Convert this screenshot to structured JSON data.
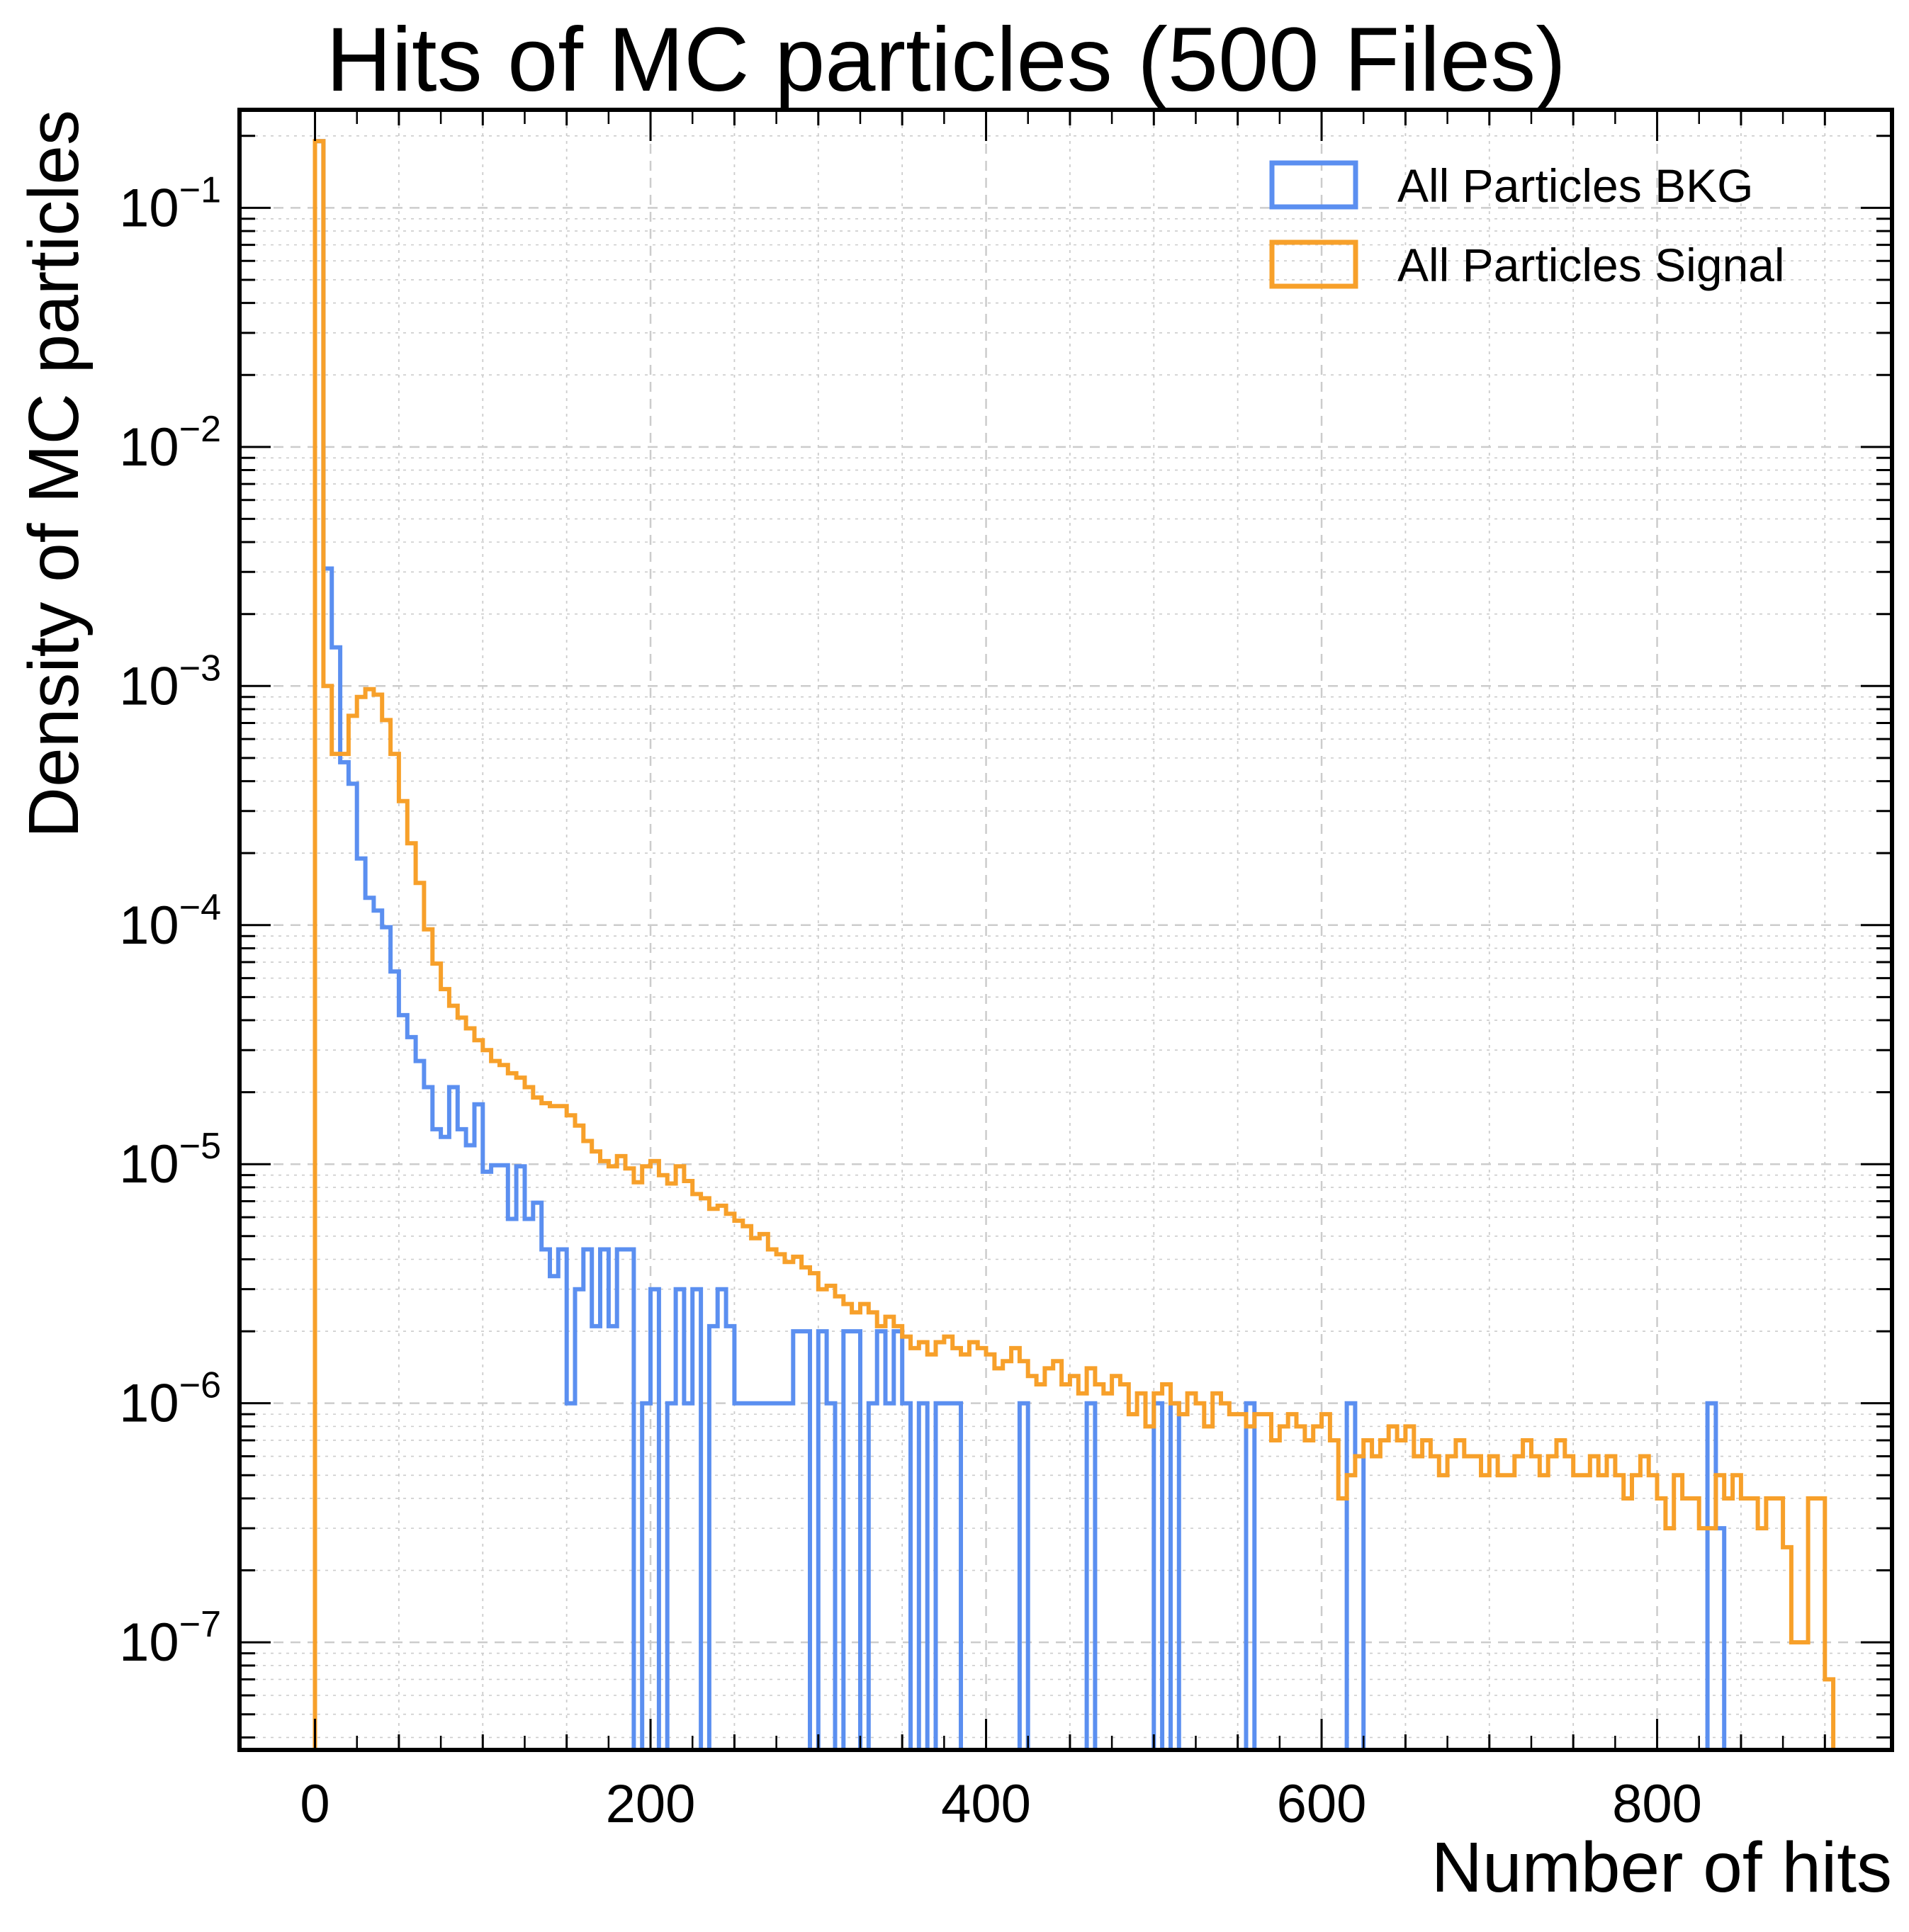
{
  "chart_data": {
    "type": "histogram",
    "title": "Hits of MC particles (500 Files)",
    "xlabel": "Number of hits",
    "ylabel": "Density of MC particles",
    "xlim": [
      -45,
      940
    ],
    "ylim_log10": [
      -7.45,
      -0.59
    ],
    "x_ticks": [
      0,
      200,
      400,
      600,
      800
    ],
    "y_tick_exponents": [
      -1,
      -2,
      -3,
      -4,
      -5,
      -6,
      -7
    ],
    "y_tick_base": "10",
    "grid": true,
    "legend_position": "top-right",
    "bin_width": 5,
    "colors": {
      "bkg": "#5b8ff0",
      "signal": "#f7a02a"
    },
    "series": [
      {
        "name": "All Particles BKG",
        "key": "bkg",
        "start": 0,
        "values": [
          0.19,
          0.0031,
          0.00145,
          0.00048,
          0.00039,
          0.00019,
          0.00013,
          0.000115,
          9.8e-05,
          6.4e-05,
          4.2e-05,
          3.4e-05,
          2.7e-05,
          2.1e-05,
          1.4e-05,
          1.3e-05,
          2.1e-05,
          1.4e-05,
          1.2e-05,
          1.78e-05,
          9.3e-06,
          9.9e-06,
          9.9e-06,
          5.9e-06,
          9.8e-06,
          5.9e-06,
          6.9e-06,
          4.4e-06,
          3.4e-06,
          4.4e-06,
          1e-06,
          3e-06,
          4.4e-06,
          2.1e-06,
          4.4e-06,
          2.1e-06,
          4.4e-06,
          4.4e-06,
          0,
          1e-06,
          3e-06,
          0,
          1e-06,
          3e-06,
          1e-06,
          3e-06,
          0,
          2.1e-06,
          3e-06,
          2.1e-06,
          1e-06,
          1e-06,
          1e-06,
          1e-06,
          1e-06,
          1e-06,
          1e-06,
          2e-06,
          2e-06,
          0,
          2e-06,
          1e-06,
          0,
          2e-06,
          2e-06,
          0,
          1e-06,
          2e-06,
          1e-06,
          2e-06,
          1e-06,
          0,
          1e-06,
          0,
          1e-06,
          1e-06,
          1e-06,
          0,
          0,
          0,
          0,
          0,
          0,
          0,
          1e-06,
          0,
          0,
          0,
          0,
          0,
          0,
          0,
          1e-06,
          0,
          0,
          0,
          0,
          0,
          0,
          0,
          1e-06,
          0,
          1e-06,
          0,
          0,
          0,
          0,
          0,
          0,
          0,
          0,
          1e-06,
          0,
          0,
          0,
          0,
          0,
          0,
          0,
          0,
          0,
          0,
          0,
          1e-06,
          6e-07,
          0,
          0,
          0,
          0,
          0,
          0,
          0,
          0,
          0,
          0,
          0,
          0,
          0,
          0,
          0,
          0,
          0,
          0,
          0,
          0,
          0,
          0,
          0,
          0,
          0,
          0,
          0,
          0,
          0,
          0,
          0,
          0,
          0,
          0,
          0,
          0,
          0,
          0,
          0,
          0,
          0,
          1e-06,
          3e-07,
          0,
          0,
          0,
          0,
          0,
          0,
          0,
          0,
          0,
          0,
          0,
          0,
          0,
          0,
          0,
          0,
          0
        ]
      },
      {
        "name": "All Particles Signal",
        "key": "signal",
        "start": 0,
        "values": [
          0.19,
          0.001,
          0.00052,
          0.00052,
          0.00075,
          0.0009,
          0.00097,
          0.00092,
          0.00072,
          0.00052,
          0.00033,
          0.00022,
          0.00015,
          9.6e-05,
          6.9e-05,
          5.4e-05,
          4.6e-05,
          4.1e-05,
          3.7e-05,
          3.3e-05,
          3e-05,
          2.7e-05,
          2.6e-05,
          2.4e-05,
          2.3e-05,
          2.1e-05,
          1.9e-05,
          1.8e-05,
          1.75e-05,
          1.75e-05,
          1.6e-05,
          1.45e-05,
          1.25e-05,
          1.13e-05,
          1.03e-05,
          9.8e-06,
          1.08e-05,
          9.6e-06,
          8.4e-06,
          9.8e-06,
          1.03e-05,
          9e-06,
          8.3e-06,
          9.8e-06,
          8.5e-06,
          7.5e-06,
          7.2e-06,
          6.5e-06,
          6.7e-06,
          6.2e-06,
          5.8e-06,
          5.5e-06,
          4.9e-06,
          5.1e-06,
          4.4e-06,
          4.2e-06,
          3.9e-06,
          4.1e-06,
          3.7e-06,
          3.5e-06,
          3e-06,
          3.1e-06,
          2.8e-06,
          2.6e-06,
          2.4e-06,
          2.6e-06,
          2.4e-06,
          2.1e-06,
          2.3e-06,
          2.1e-06,
          1.9e-06,
          1.7e-06,
          1.8e-06,
          1.6e-06,
          1.8e-06,
          1.9e-06,
          1.7e-06,
          1.6e-06,
          1.8e-06,
          1.7e-06,
          1.6e-06,
          1.4e-06,
          1.5e-06,
          1.7e-06,
          1.5e-06,
          1.3e-06,
          1.2e-06,
          1.4e-06,
          1.5e-06,
          1.2e-06,
          1.3e-06,
          1.1e-06,
          1.4e-06,
          1.2e-06,
          1.1e-06,
          1.3e-06,
          1.2e-06,
          9e-07,
          1.1e-06,
          8e-07,
          1.1e-06,
          1.2e-06,
          1e-06,
          9e-07,
          1.1e-06,
          1e-06,
          8e-07,
          1.1e-06,
          1e-06,
          9e-07,
          9e-07,
          8e-07,
          9e-07,
          9e-07,
          7e-07,
          8e-07,
          9e-07,
          8e-07,
          7e-07,
          8e-07,
          9e-07,
          7e-07,
          4e-07,
          5e-07,
          6e-07,
          7e-07,
          6e-07,
          7e-07,
          8e-07,
          7e-07,
          8e-07,
          6e-07,
          7e-07,
          6e-07,
          5e-07,
          6e-07,
          7e-07,
          6e-07,
          6e-07,
          5e-07,
          6e-07,
          5e-07,
          5e-07,
          6e-07,
          7e-07,
          6e-07,
          5e-07,
          6e-07,
          7e-07,
          6e-07,
          5e-07,
          5e-07,
          6e-07,
          5e-07,
          6e-07,
          5e-07,
          4e-07,
          5e-07,
          6e-07,
          5e-07,
          4e-07,
          3e-07,
          5e-07,
          4e-07,
          4e-07,
          3e-07,
          3e-07,
          5e-07,
          4e-07,
          5e-07,
          4e-07,
          4e-07,
          3e-07,
          4e-07,
          4e-07,
          2.5e-07,
          1e-07,
          1e-07,
          4e-07,
          4e-07,
          7e-08
        ]
      }
    ]
  }
}
